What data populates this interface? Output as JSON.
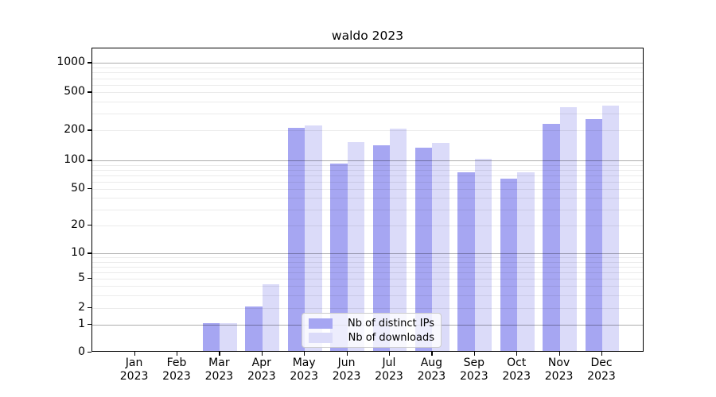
{
  "chart_data": {
    "type": "bar",
    "title": "waldo 2023",
    "categories": [
      "Jan",
      "Feb",
      "Mar",
      "Apr",
      "May",
      "Jun",
      "Jul",
      "Aug",
      "Sep",
      "Oct",
      "Nov",
      "Dec"
    ],
    "year": "2023",
    "series": [
      {
        "name": "Nb of distinct IPs",
        "color": "#a6a6f2",
        "values": [
          0,
          0,
          1,
          2,
          205,
          90,
          137,
          131,
          72,
          62,
          227,
          255
        ]
      },
      {
        "name": "Nb of downloads",
        "color": "#dbdbf9",
        "values": [
          0,
          0,
          1,
          4,
          218,
          147,
          203,
          145,
          100,
          73,
          335,
          350
        ]
      }
    ],
    "yticks": [
      0,
      1,
      2,
      5,
      10,
      20,
      50,
      100,
      200,
      500,
      1000
    ],
    "yscale": "symlog-like (linear 0-1, log decades above)",
    "ylim": [
      0,
      1400
    ],
    "grid": true,
    "grid_over_bars": true,
    "legend_position": "inside lower-center",
    "legend_entries": [
      "Nb of distinct IPs",
      "Nb of downloads"
    ]
  }
}
